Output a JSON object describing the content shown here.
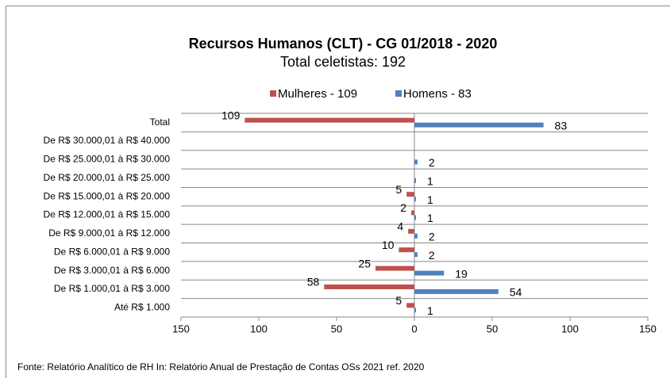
{
  "chart_data": {
    "type": "butterfly-bar",
    "title": "Recursos Humanos (CLT) - CG 01/2018 - 2020",
    "subtitle": "Total celetistas:  192",
    "source": "Fonte: Relatório Analítico de RH In: Relatório Anual de Prestação de Contas OSs 2021 ref. 2020",
    "categories": [
      "Total",
      "De R$ 30.000,01 à R$ 40.000",
      "De R$ 25.000,01 à R$ 30.000",
      "De R$ 20.000,01 à R$ 25.000",
      "De R$ 15.000,01 à R$ 20.000",
      "De R$ 12.000,01 à R$ 15.000",
      "De R$ 9.000,01 à R$ 12.000",
      "De R$ 6.000,01 à R$ 9.000",
      "De R$ 3.000,01 à R$ 6.000",
      "De R$ 1.000,01 à R$ 3.000",
      "Até R$ 1.000"
    ],
    "series": [
      {
        "name": "Mulheres - 109",
        "color": "#c0504d",
        "values": [
          -109,
          null,
          null,
          null,
          -5,
          -2,
          -4,
          -10,
          -25,
          -58,
          -5
        ],
        "value_labels": [
          "109",
          null,
          null,
          null,
          "5",
          "2",
          "4",
          "10",
          "25",
          "58",
          "5"
        ]
      },
      {
        "name": "Homens - 83",
        "color": "#4f81bd",
        "values": [
          83,
          null,
          2,
          1,
          1,
          1,
          2,
          2,
          19,
          54,
          1
        ]
      }
    ],
    "xlim": [
      -150,
      150
    ],
    "xticks": [
      {
        "value": -150,
        "label": "150"
      },
      {
        "value": -100,
        "label": "100"
      },
      {
        "value": -50,
        "label": "50"
      },
      0,
      50,
      100,
      150
    ],
    "grid": true,
    "legend": "top"
  }
}
